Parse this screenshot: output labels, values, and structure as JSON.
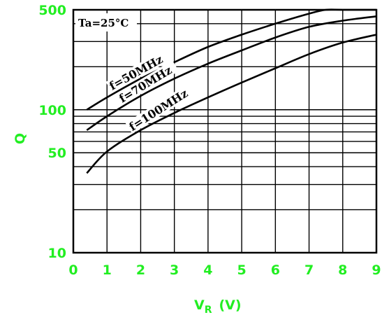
{
  "chart_data": {
    "type": "line",
    "title": "",
    "annotation": "Ta=25°C",
    "xlabel_main": "V",
    "xlabel_sub": "R",
    "xlabel_unit": "(V)",
    "ylabel": "Q",
    "xlim": [
      0,
      9
    ],
    "ylim": [
      10,
      500
    ],
    "y_scale": "log",
    "grid": true,
    "x_ticks": [
      "0",
      "1",
      "2",
      "3",
      "4",
      "5",
      "6",
      "7",
      "8",
      "9"
    ],
    "y_tick_labels": [
      {
        "value": 10,
        "label": "10"
      },
      {
        "value": 50,
        "label": "50"
      },
      {
        "value": 100,
        "label": "100"
      },
      {
        "value": 500,
        "label": "500"
      }
    ],
    "series": [
      {
        "name": "f=50MHz",
        "x": [
          0.4,
          1,
          2,
          3,
          4,
          5,
          6,
          7,
          7.5,
          8,
          9
        ],
        "y": [
          100,
          122,
          165,
          215,
          275,
          335,
          400,
          470,
          500,
          500,
          500
        ]
      },
      {
        "name": "f=70MHz",
        "x": [
          0.4,
          1,
          2,
          3,
          4,
          5,
          6,
          7,
          8,
          9
        ],
        "y": [
          72,
          90,
          125,
          165,
          210,
          260,
          320,
          380,
          420,
          450
        ]
      },
      {
        "name": "f=100MHz",
        "x": [
          0.4,
          1,
          2,
          3,
          4,
          5,
          6,
          7,
          8,
          9
        ],
        "y": [
          36,
          51,
          72,
          95,
          122,
          155,
          195,
          245,
          295,
          335
        ]
      }
    ]
  }
}
